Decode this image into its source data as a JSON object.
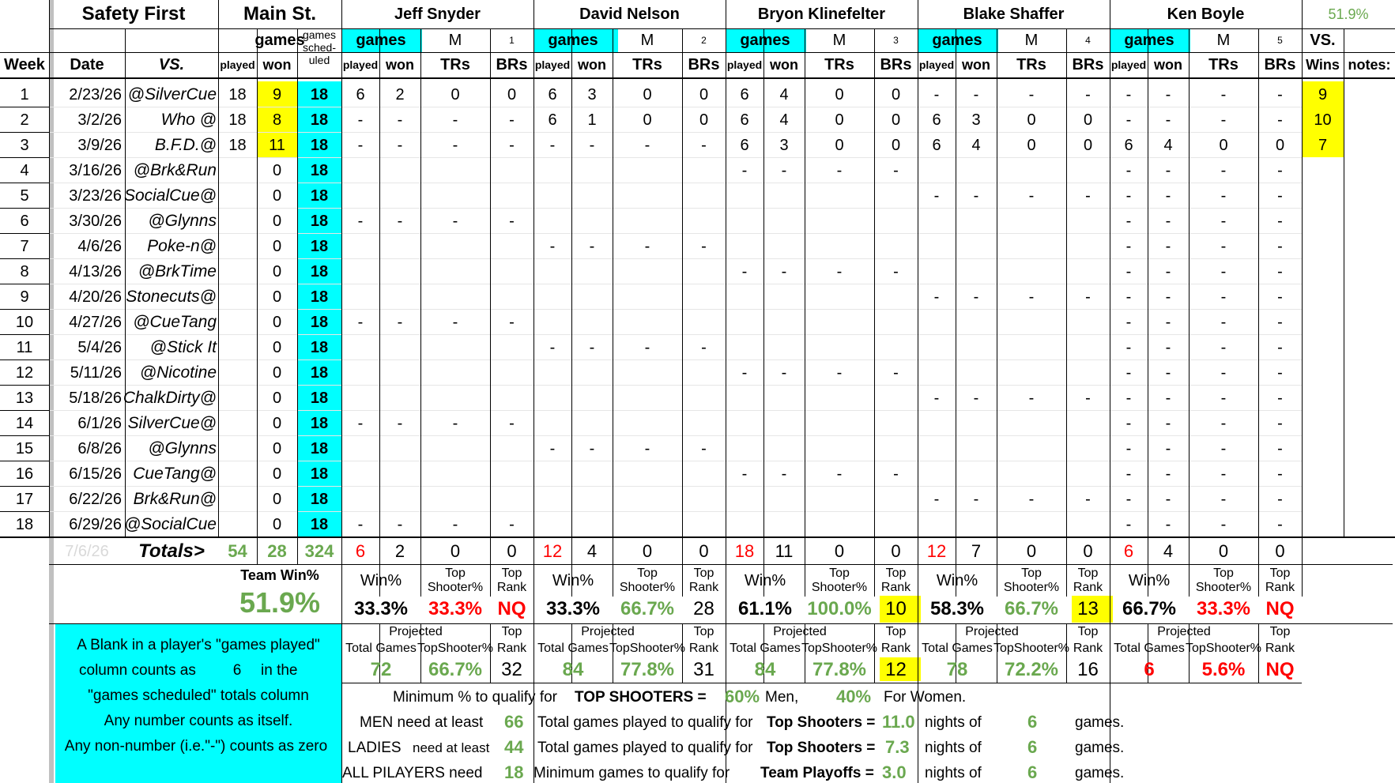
{
  "colors": {
    "accent_cyan": "#00ffff",
    "highlight_yellow": "#ffff00",
    "good_green": "#6aa84f",
    "bad_red": "#ff0000",
    "faded_grey": "#d9d9d9"
  },
  "header": {
    "team": "Safety First",
    "venue": "Main St.",
    "games": "games",
    "sched": [
      "games",
      "sched-",
      "uled"
    ],
    "week": "Week",
    "date": "Date",
    "vs": "VS.",
    "played": "played",
    "won": "won",
    "team_pct": "51.9%",
    "vs_lbl": "VS.",
    "wins_lbl": "Wins",
    "notes_lbl": "notes:",
    "m": "M",
    "trs": "TRs",
    "brs": "BRs"
  },
  "players": [
    {
      "name": "Jeff Snyder",
      "num": "1"
    },
    {
      "name": "David Nelson",
      "num": "2"
    },
    {
      "name": "Bryon Klinefelter",
      "num": "3"
    },
    {
      "name": "Blake Shaffer",
      "num": "4"
    },
    {
      "name": "Ken Boyle",
      "num": "5"
    }
  ],
  "rows": [
    {
      "week": "1",
      "date": "2/23/26",
      "opp": "@SilverCue",
      "played": "18",
      "won": "9",
      "sched": "18",
      "p": [
        [
          "6",
          "2",
          "0",
          "0"
        ],
        [
          "6",
          "3",
          "0",
          "0"
        ],
        [
          "6",
          "4",
          "0",
          "0"
        ],
        [
          "-",
          "-",
          "-",
          "-"
        ],
        [
          "-",
          "-",
          "-",
          "-"
        ]
      ],
      "wins": "9"
    },
    {
      "week": "2",
      "date": "3/2/26",
      "opp": "Who @",
      "played": "18",
      "won": "8",
      "sched": "18",
      "p": [
        [
          "-",
          "-",
          "-",
          "-"
        ],
        [
          "6",
          "1",
          "0",
          "0"
        ],
        [
          "6",
          "4",
          "0",
          "0"
        ],
        [
          "6",
          "3",
          "0",
          "0"
        ],
        [
          "-",
          "-",
          "-",
          "-"
        ]
      ],
      "wins": "10"
    },
    {
      "week": "3",
      "date": "3/9/26",
      "opp": "B.F.D.@",
      "played": "18",
      "won": "11",
      "sched": "18",
      "p": [
        [
          "-",
          "-",
          "-",
          "-"
        ],
        [
          "-",
          "-",
          "-",
          "-"
        ],
        [
          "6",
          "3",
          "0",
          "0"
        ],
        [
          "6",
          "4",
          "0",
          "0"
        ],
        [
          "6",
          "4",
          "0",
          "0"
        ]
      ],
      "wins": "7"
    },
    {
      "week": "4",
      "date": "3/16/26",
      "opp": "@Brk&Run",
      "played": "",
      "won": "0",
      "sched": "18",
      "p": [
        [
          "",
          "",
          "",
          ""
        ],
        [
          "",
          "",
          "",
          ""
        ],
        [
          "-",
          "-",
          "-",
          "-"
        ],
        [
          "",
          "",
          "",
          ""
        ],
        [
          "-",
          "-",
          "-",
          "-"
        ]
      ],
      "wins": ""
    },
    {
      "week": "5",
      "date": "3/23/26",
      "opp": "SocialCue@",
      "played": "",
      "won": "0",
      "sched": "18",
      "p": [
        [
          "",
          "",
          "",
          ""
        ],
        [
          "",
          "",
          "",
          ""
        ],
        [
          "",
          "",
          "",
          ""
        ],
        [
          "-",
          "-",
          "-",
          "-"
        ],
        [
          "-",
          "-",
          "-",
          "-"
        ]
      ],
      "wins": ""
    },
    {
      "week": "6",
      "date": "3/30/26",
      "opp": "@Glynns",
      "played": "",
      "won": "0",
      "sched": "18",
      "p": [
        [
          "-",
          "-",
          "-",
          "-"
        ],
        [
          "",
          "",
          "",
          ""
        ],
        [
          "",
          "",
          "",
          ""
        ],
        [
          "",
          "",
          "",
          ""
        ],
        [
          "-",
          "-",
          "-",
          "-"
        ]
      ],
      "wins": ""
    },
    {
      "week": "7",
      "date": "4/6/26",
      "opp": "Poke-n@",
      "played": "",
      "won": "0",
      "sched": "18",
      "p": [
        [
          "",
          "",
          "",
          ""
        ],
        [
          "-",
          "-",
          "-",
          "-"
        ],
        [
          "",
          "",
          "",
          ""
        ],
        [
          "",
          "",
          "",
          ""
        ],
        [
          "-",
          "-",
          "-",
          "-"
        ]
      ],
      "wins": ""
    },
    {
      "week": "8",
      "date": "4/13/26",
      "opp": "@BrkTime",
      "played": "",
      "won": "0",
      "sched": "18",
      "p": [
        [
          "",
          "",
          "",
          ""
        ],
        [
          "",
          "",
          "",
          ""
        ],
        [
          "-",
          "-",
          "-",
          "-"
        ],
        [
          "",
          "",
          "",
          ""
        ],
        [
          "-",
          "-",
          "-",
          "-"
        ]
      ],
      "wins": ""
    },
    {
      "week": "9",
      "date": "4/20/26",
      "opp": "Stonecuts@",
      "played": "",
      "won": "0",
      "sched": "18",
      "p": [
        [
          "",
          "",
          "",
          ""
        ],
        [
          "",
          "",
          "",
          ""
        ],
        [
          "",
          "",
          "",
          ""
        ],
        [
          "-",
          "-",
          "-",
          "-"
        ],
        [
          "-",
          "-",
          "-",
          "-"
        ]
      ],
      "wins": ""
    },
    {
      "week": "10",
      "date": "4/27/26",
      "opp": "@CueTang",
      "played": "",
      "won": "0",
      "sched": "18",
      "p": [
        [
          "-",
          "-",
          "-",
          "-"
        ],
        [
          "",
          "",
          "",
          ""
        ],
        [
          "",
          "",
          "",
          ""
        ],
        [
          "",
          "",
          "",
          ""
        ],
        [
          "-",
          "-",
          "-",
          "-"
        ]
      ],
      "wins": ""
    },
    {
      "week": "11",
      "date": "5/4/26",
      "opp": "@Stick It",
      "played": "",
      "won": "0",
      "sched": "18",
      "p": [
        [
          "",
          "",
          "",
          ""
        ],
        [
          "-",
          "-",
          "-",
          "-"
        ],
        [
          "",
          "",
          "",
          ""
        ],
        [
          "",
          "",
          "",
          ""
        ],
        [
          "-",
          "-",
          "-",
          "-"
        ]
      ],
      "wins": ""
    },
    {
      "week": "12",
      "date": "5/11/26",
      "opp": "@Nicotine",
      "played": "",
      "won": "0",
      "sched": "18",
      "p": [
        [
          "",
          "",
          "",
          ""
        ],
        [
          "",
          "",
          "",
          ""
        ],
        [
          "-",
          "-",
          "-",
          "-"
        ],
        [
          "",
          "",
          "",
          ""
        ],
        [
          "-",
          "-",
          "-",
          "-"
        ]
      ],
      "wins": ""
    },
    {
      "week": "13",
      "date": "5/18/26",
      "opp": "ChalkDirty@",
      "played": "",
      "won": "0",
      "sched": "18",
      "p": [
        [
          "",
          "",
          "",
          ""
        ],
        [
          "",
          "",
          "",
          ""
        ],
        [
          "",
          "",
          "",
          ""
        ],
        [
          "-",
          "-",
          "-",
          "-"
        ],
        [
          "-",
          "-",
          "-",
          "-"
        ]
      ],
      "wins": ""
    },
    {
      "week": "14",
      "date": "6/1/26",
      "opp": "SilverCue@",
      "played": "",
      "won": "0",
      "sched": "18",
      "p": [
        [
          "-",
          "-",
          "-",
          "-"
        ],
        [
          "",
          "",
          "",
          ""
        ],
        [
          "",
          "",
          "",
          ""
        ],
        [
          "",
          "",
          "",
          ""
        ],
        [
          "-",
          "-",
          "-",
          "-"
        ]
      ],
      "wins": ""
    },
    {
      "week": "15",
      "date": "6/8/26",
      "opp": "@Glynns",
      "played": "",
      "won": "0",
      "sched": "18",
      "p": [
        [
          "",
          "",
          "",
          ""
        ],
        [
          "-",
          "-",
          "-",
          "-"
        ],
        [
          "",
          "",
          "",
          ""
        ],
        [
          "",
          "",
          "",
          ""
        ],
        [
          "-",
          "-",
          "-",
          "-"
        ]
      ],
      "wins": ""
    },
    {
      "week": "16",
      "date": "6/15/26",
      "opp": "CueTang@",
      "played": "",
      "won": "0",
      "sched": "18",
      "p": [
        [
          "",
          "",
          "",
          ""
        ],
        [
          "",
          "",
          "",
          ""
        ],
        [
          "-",
          "-",
          "-",
          "-"
        ],
        [
          "",
          "",
          "",
          ""
        ],
        [
          "-",
          "-",
          "-",
          "-"
        ]
      ],
      "wins": ""
    },
    {
      "week": "17",
      "date": "6/22/26",
      "opp": "Brk&Run@",
      "played": "",
      "won": "0",
      "sched": "18",
      "p": [
        [
          "",
          "",
          "",
          ""
        ],
        [
          "",
          "",
          "",
          ""
        ],
        [
          "",
          "",
          "",
          ""
        ],
        [
          "-",
          "-",
          "-",
          "-"
        ],
        [
          "-",
          "-",
          "-",
          "-"
        ]
      ],
      "wins": ""
    },
    {
      "week": "18",
      "date": "6/29/26",
      "opp": "@SocialCue",
      "played": "",
      "won": "0",
      "sched": "18",
      "p": [
        [
          "-",
          "-",
          "-",
          "-"
        ],
        [
          "",
          "",
          "",
          ""
        ],
        [
          "",
          "",
          "",
          ""
        ],
        [
          "",
          "",
          "",
          ""
        ],
        [
          "-",
          "-",
          "-",
          "-"
        ]
      ],
      "wins": ""
    }
  ],
  "totals": {
    "date": "7/6/26",
    "label": "Totals>",
    "played": "54",
    "won": "28",
    "sched": "324",
    "p": [
      [
        "6",
        "2",
        "0",
        "0"
      ],
      [
        "12",
        "4",
        "0",
        "0"
      ],
      [
        "18",
        "11",
        "0",
        "0"
      ],
      [
        "12",
        "7",
        "0",
        "0"
      ],
      [
        "6",
        "4",
        "0",
        "0"
      ]
    ]
  },
  "stats": {
    "team_label": "Team Win%",
    "team_value": "51.9%",
    "winpct_lbl": "Win%",
    "tops_lbl1": "Top",
    "tops_lbl2": "Shooter%",
    "rank_lbl1": "Top",
    "rank_lbl2": "Rank",
    "p": [
      {
        "win": "33.3%",
        "tops": "33.3%",
        "rank": "NQ"
      },
      {
        "win": "33.3%",
        "tops": "66.7%",
        "rank": "28"
      },
      {
        "win": "61.1%",
        "tops": "100.0%",
        "rank": "10"
      },
      {
        "win": "58.3%",
        "tops": "66.7%",
        "rank": "13"
      },
      {
        "win": "66.7%",
        "tops": "33.3%",
        "rank": "NQ"
      }
    ]
  },
  "projected": {
    "proj_lbl": "Projected",
    "total_lbl": "Total Games",
    "tops_lbl": "TopShooter%",
    "rank_lbl1": "Top",
    "rank_lbl2": "Rank",
    "p": [
      {
        "total": "72",
        "tops": "66.7%",
        "rank": "32"
      },
      {
        "total": "84",
        "tops": "77.8%",
        "rank": "31"
      },
      {
        "total": "84",
        "tops": "77.8%",
        "rank": "12"
      },
      {
        "total": "78",
        "tops": "72.2%",
        "rank": "16"
      },
      {
        "total": "6",
        "tops": "5.6%",
        "rank": "NQ"
      }
    ]
  },
  "note": {
    "l1": "A Blank in a player's \"games played\"",
    "l2a": "column counts as",
    "l2b": "6",
    "l2c": "in the",
    "l3": "\"games scheduled\" totals column",
    "l4": "Any number counts as itself.",
    "l5": "Any non-number (i.e.\"-\") counts as zero"
  },
  "rules": {
    "r1a": "Minimum % to qualify for",
    "r1b": "TOP SHOOTERS =",
    "r1c": "60%",
    "r1d": "Men,",
    "r1e": "40%",
    "r1f": "For Women.",
    "r2a": "MEN need at least",
    "r2b": "66",
    "r2c": "Total games played to qualify for",
    "r2d": "Top Shooters =",
    "r2e": "11.0",
    "r2f": "nights of",
    "r2g": "6",
    "r2h": "games.",
    "r3a": "LADIES",
    "r3b": "need at least",
    "r3c": "44",
    "r3d": "Total games played to qualify for",
    "r3e": "Top Shooters =",
    "r3f": "7.3",
    "r3g": "nights of",
    "r3h": "6",
    "r3i": "games.",
    "r4a": "ALL PILAYERS need",
    "r4b": "18",
    "r4c": "Minimum  games  to qualify for",
    "r4d": "Team Playoffs =",
    "r4e": "3.0",
    "r4f": "nights of",
    "r4g": "6",
    "r4h": "games."
  }
}
